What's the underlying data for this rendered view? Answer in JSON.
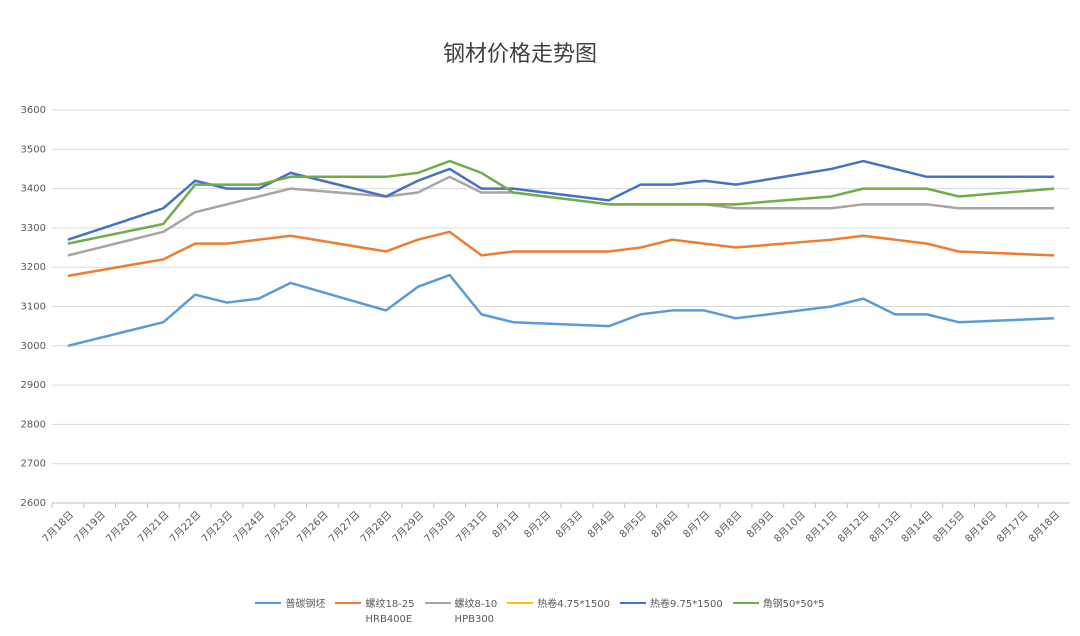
{
  "chart_data": {
    "type": "line",
    "title": "钢材价格走势图",
    "categories": [
      "7月18日",
      "7月19日",
      "7月20日",
      "7月21日",
      "7月22日",
      "7月23日",
      "7月24日",
      "7月25日",
      "7月26日",
      "7月27日",
      "7月28日",
      "7月29日",
      "7月30日",
      "7月31日",
      "8月1日",
      "8月2日",
      "8月3日",
      "8月4日",
      "8月5日",
      "8月6日",
      "8月7日",
      "8月8日",
      "8月9日",
      "8月10日",
      "8月11日",
      "8月12日",
      "8月13日",
      "8月14日",
      "8月15日",
      "8月16日",
      "8月17日",
      "8月18日"
    ],
    "series": [
      {
        "name": "普碳钢坯",
        "color": "#5b9bd5",
        "values": [
          3000,
          null,
          null,
          3060,
          3130,
          3110,
          3120,
          3160,
          null,
          null,
          3090,
          3150,
          3180,
          3080,
          3060,
          null,
          null,
          3050,
          3080,
          3090,
          3090,
          3070,
          null,
          null,
          3100,
          3120,
          3080,
          3080,
          3060,
          null,
          null,
          3070
        ]
      },
      {
        "name": "螺纹18-25\nHRB400E",
        "color": "#ed7d31",
        "values": [
          3178,
          null,
          null,
          3220,
          3260,
          3260,
          3270,
          3280,
          null,
          null,
          3240,
          3270,
          3290,
          3230,
          3240,
          null,
          null,
          3240,
          3250,
          3270,
          3260,
          3250,
          null,
          null,
          3270,
          3280,
          3270,
          3260,
          3240,
          null,
          null,
          3230
        ]
      },
      {
        "name": "螺纹8-10\nHPB300",
        "color": "#a5a5a5",
        "values": [
          3230,
          null,
          null,
          3290,
          3340,
          3360,
          3380,
          3400,
          null,
          null,
          3380,
          3390,
          3430,
          3390,
          3390,
          null,
          null,
          3360,
          3360,
          3360,
          3360,
          3350,
          null,
          null,
          3350,
          3360,
          3360,
          3360,
          3350,
          null,
          null,
          3350
        ]
      },
      {
        "name": "热卷4.75*1500",
        "color": "#ffc000",
        "values": [
          null,
          null,
          null,
          null,
          null,
          null,
          null,
          null,
          null,
          null,
          null,
          null,
          null,
          null,
          null,
          null,
          null,
          null,
          null,
          null,
          null,
          null,
          null,
          null,
          null,
          null,
          null,
          null,
          null,
          null,
          null,
          null
        ]
      },
      {
        "name": "热卷9.75*1500",
        "color": "#4472c4",
        "values": [
          3270,
          null,
          null,
          3350,
          3420,
          3400,
          3400,
          3440,
          null,
          null,
          3380,
          3420,
          3450,
          3400,
          3400,
          null,
          null,
          3370,
          3410,
          3410,
          3420,
          3410,
          null,
          null,
          3450,
          3470,
          3450,
          3430,
          3430,
          null,
          null,
          3430
        ]
      },
      {
        "name": "角钢50*50*5",
        "color": "#70ad47",
        "values": [
          3260,
          null,
          null,
          3310,
          3410,
          3410,
          3410,
          3430,
          null,
          null,
          3430,
          3440,
          3470,
          3440,
          3390,
          null,
          null,
          3360,
          3360,
          3360,
          3360,
          3360,
          null,
          null,
          3380,
          3400,
          3400,
          3400,
          3380,
          null,
          null,
          3400
        ]
      }
    ],
    "ylim": [
      2600,
      3600
    ],
    "yticks": [
      2600,
      2700,
      2800,
      2900,
      3000,
      3100,
      3200,
      3300,
      3400,
      3500,
      3600
    ],
    "grid": true,
    "span_gaps": true,
    "legend": "bottom"
  }
}
